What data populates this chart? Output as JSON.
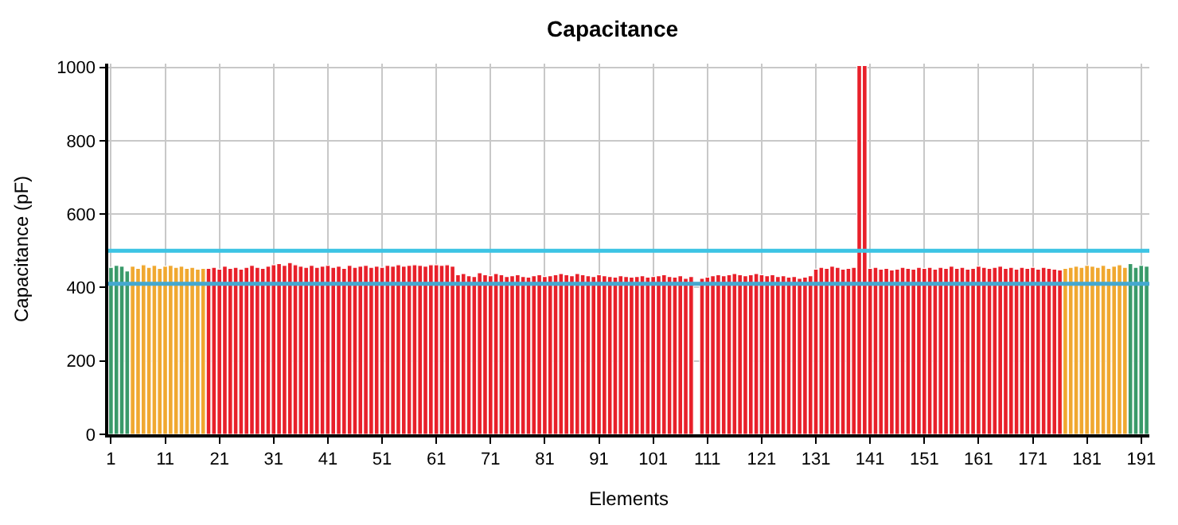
{
  "chart_data": {
    "type": "bar",
    "title": "Capacitance",
    "xlabel": "Elements",
    "ylabel": "Capacitance (pF)",
    "series": [
      {
        "color": "#3a9a6a",
        "x": [
          1,
          2,
          3,
          4
        ],
        "values": [
          455,
          460,
          458,
          445
        ]
      },
      {
        "color": "#f0a830",
        "x": [
          5,
          6,
          7,
          8,
          9,
          10,
          11,
          12,
          13,
          14,
          15,
          16,
          17,
          18
        ],
        "values": [
          458,
          452,
          462,
          455,
          460,
          452,
          458,
          460,
          455,
          458,
          452,
          455,
          450,
          452
        ]
      },
      {
        "color": "#e8202a",
        "x": [
          19,
          20,
          21,
          22,
          23,
          24,
          25,
          26,
          27,
          28,
          29,
          30,
          31,
          32,
          33,
          34,
          35,
          36,
          37,
          38,
          39,
          40,
          41,
          42,
          43,
          44,
          45,
          46,
          47,
          48,
          49,
          50,
          51,
          52,
          53,
          54,
          55,
          56,
          57,
          58,
          59,
          60,
          61,
          62,
          63,
          64,
          65,
          66,
          67,
          68,
          69,
          70,
          71,
          72,
          73,
          74,
          75,
          76,
          77,
          78,
          79,
          80,
          81,
          82,
          83,
          84,
          85,
          86,
          87,
          88,
          89,
          90,
          91,
          92,
          93,
          94,
          95,
          96,
          97,
          98,
          99,
          100,
          101,
          102,
          103,
          104,
          105,
          106,
          107,
          108,
          109,
          110,
          111,
          112,
          113,
          114,
          115,
          116,
          117,
          118,
          119,
          120,
          121,
          122,
          123,
          124,
          125,
          126,
          127,
          128,
          129,
          130,
          131,
          132,
          133,
          134,
          135,
          136,
          137,
          138,
          139,
          140,
          141,
          142,
          143,
          144,
          145,
          146,
          147,
          148,
          149,
          150,
          151,
          152,
          153,
          154,
          155,
          156,
          157,
          158,
          159,
          160,
          161,
          162,
          163,
          164,
          165,
          166,
          167,
          168,
          169,
          170,
          171,
          172,
          173,
          174,
          175,
          176
        ],
        "values": [
          452,
          455,
          450,
          458,
          452,
          455,
          450,
          455,
          460,
          455,
          452,
          458,
          462,
          465,
          460,
          468,
          462,
          458,
          455,
          460,
          455,
          458,
          460,
          455,
          458,
          452,
          460,
          455,
          458,
          460,
          455,
          458,
          455,
          460,
          458,
          462,
          458,
          460,
          462,
          460,
          458,
          462,
          462,
          460,
          462,
          458,
          435,
          438,
          432,
          430,
          440,
          435,
          432,
          438,
          435,
          430,
          432,
          435,
          430,
          428,
          432,
          435,
          430,
          432,
          435,
          438,
          435,
          432,
          438,
          435,
          432,
          430,
          435,
          432,
          430,
          428,
          432,
          430,
          428,
          430,
          432,
          428,
          430,
          432,
          435,
          430,
          428,
          432,
          425,
          430,
          null,
          425,
          428,
          432,
          435,
          432,
          435,
          438,
          435,
          432,
          435,
          438,
          435,
          432,
          435,
          430,
          432,
          428,
          430,
          425,
          428,
          432,
          450,
          455,
          452,
          458,
          455,
          450,
          452,
          455,
          1005,
          1005,
          452,
          455,
          450,
          452,
          448,
          450,
          455,
          452,
          450,
          455,
          452,
          455,
          450,
          455,
          452,
          458,
          452,
          455,
          450,
          452,
          458,
          455,
          452,
          455,
          458,
          452,
          455,
          450,
          455,
          452,
          455,
          450,
          455,
          452,
          450,
          448
        ]
      },
      {
        "color": "#f0a830",
        "x": [
          177,
          178,
          179,
          180,
          181,
          182,
          183,
          184,
          185,
          186,
          187,
          188
        ],
        "values": [
          452,
          455,
          458,
          455,
          460,
          458,
          455,
          460,
          452,
          458,
          462,
          455
        ]
      },
      {
        "color": "#3a9a6a",
        "x": [
          189,
          190,
          191,
          192
        ],
        "values": [
          465,
          455,
          460,
          458
        ]
      }
    ],
    "ref_lines": [
      {
        "axis": "y",
        "value": 500,
        "color": "#3cc4e4"
      },
      {
        "axis": "y",
        "value": 410,
        "color": "#44a8d0"
      }
    ],
    "xlim": [
      0.5,
      192.5
    ],
    "xticks": [
      1,
      11,
      21,
      31,
      41,
      51,
      61,
      71,
      81,
      91,
      101,
      111,
      121,
      131,
      141,
      151,
      161,
      171,
      181,
      191
    ],
    "ylim": [
      0,
      1010
    ],
    "yticks": [
      0,
      200,
      400,
      600,
      800,
      1000
    ],
    "grid": true
  }
}
